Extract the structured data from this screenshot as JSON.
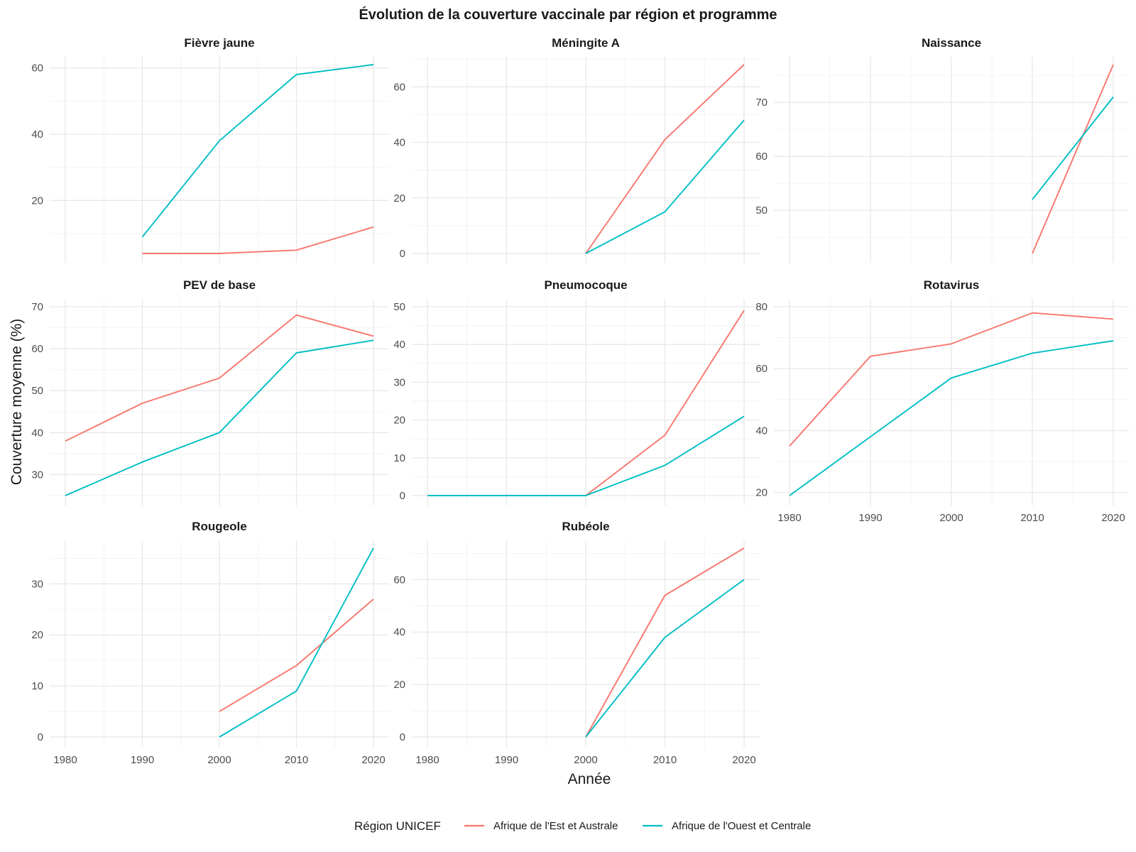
{
  "chart_data": {
    "type": "line",
    "title": "Évolution de la couverture vaccinale par région et programme",
    "xlabel": "Année",
    "ylabel": "Couverture moyenne (%)",
    "grid": true,
    "legend": {
      "title": "Région UNICEF",
      "placement": "bottom",
      "entries": [
        {
          "name": "Afrique de l'Est et Australe",
          "color": "#F8766D"
        },
        {
          "name": "Afrique de l'Ouest et Centrale",
          "color": "#00BFC4"
        }
      ]
    },
    "x_ticks": [
      1980,
      1990,
      2000,
      2010,
      2020
    ],
    "xlim": [
      1980,
      2020
    ],
    "panels": [
      {
        "title": "Fièvre jaune",
        "ylim": [
          4,
          61
        ],
        "y_ticks": [
          20,
          40,
          60
        ],
        "series": [
          {
            "name": "Afrique de l'Est et Australe",
            "x": [
              1990,
              2000,
              2010,
              2020
            ],
            "values": [
              4,
              4,
              5,
              12
            ]
          },
          {
            "name": "Afrique de l'Ouest et Centrale",
            "x": [
              1990,
              2000,
              2010,
              2020
            ],
            "values": [
              9,
              38,
              58,
              61
            ]
          }
        ]
      },
      {
        "title": "Méningite A",
        "ylim": [
          0,
          68
        ],
        "y_ticks": [
          0,
          20,
          40,
          60
        ],
        "series": [
          {
            "name": "Afrique de l'Est et Australe",
            "x": [
              2000,
              2010,
              2020
            ],
            "values": [
              0,
              41,
              68
            ]
          },
          {
            "name": "Afrique de l'Ouest et Centrale",
            "x": [
              2000,
              2010,
              2020
            ],
            "values": [
              0,
              15,
              48
            ]
          }
        ]
      },
      {
        "title": "Naissance",
        "ylim": [
          42,
          77
        ],
        "y_ticks": [
          50,
          60,
          70
        ],
        "series": [
          {
            "name": "Afrique de l'Est et Australe",
            "x": [
              2010,
              2020
            ],
            "values": [
              42,
              77
            ]
          },
          {
            "name": "Afrique de l'Ouest et Centrale",
            "x": [
              2010,
              2020
            ],
            "values": [
              52,
              71
            ]
          }
        ]
      },
      {
        "title": "PEV de base",
        "ylim": [
          25,
          70
        ],
        "y_ticks": [
          30,
          40,
          50,
          60,
          70
        ],
        "series": [
          {
            "name": "Afrique de l'Est et Australe",
            "x": [
              1980,
              1990,
              2000,
              2010,
              2020
            ],
            "values": [
              38,
              47,
              53,
              68,
              63
            ]
          },
          {
            "name": "Afrique de l'Ouest et Centrale",
            "x": [
              1980,
              1990,
              2000,
              2010,
              2020
            ],
            "values": [
              25,
              33,
              40,
              59,
              62
            ]
          }
        ]
      },
      {
        "title": "Pneumocoque",
        "ylim": [
          0,
          50
        ],
        "y_ticks": [
          0,
          10,
          20,
          30,
          40,
          50
        ],
        "series": [
          {
            "name": "Afrique de l'Est et Australe",
            "x": [
              1980,
              1990,
              2000,
              2010,
              2020
            ],
            "values": [
              0,
              0,
              0,
              16,
              49
            ]
          },
          {
            "name": "Afrique de l'Ouest et Centrale",
            "x": [
              1980,
              1990,
              2000,
              2010,
              2020
            ],
            "values": [
              0,
              0,
              0,
              8,
              21
            ]
          }
        ]
      },
      {
        "title": "Rotavirus",
        "ylim": [
          19,
          80
        ],
        "y_ticks": [
          20,
          40,
          60,
          80
        ],
        "series": [
          {
            "name": "Afrique de l'Est et Australe",
            "x": [
              1980,
              1990,
              2000,
              2010,
              2020
            ],
            "values": [
              35,
              64,
              68,
              78,
              76
            ]
          },
          {
            "name": "Afrique de l'Ouest et Centrale",
            "x": [
              1980,
              1990,
              2000,
              2010,
              2020
            ],
            "values": [
              19,
              38,
              57,
              65,
              69
            ]
          }
        ]
      },
      {
        "title": "Rougeole",
        "ylim": [
          0,
          37
        ],
        "y_ticks": [
          0,
          10,
          20,
          30
        ],
        "series": [
          {
            "name": "Afrique de l'Est et Australe",
            "x": [
              2000,
              2010,
              2020
            ],
            "values": [
              5,
              14,
              27
            ]
          },
          {
            "name": "Afrique de l'Ouest et Centrale",
            "x": [
              2000,
              2010,
              2020
            ],
            "values": [
              0,
              9,
              37
            ]
          }
        ]
      },
      {
        "title": "Rubéole",
        "ylim": [
          0,
          72
        ],
        "y_ticks": [
          0,
          20,
          40,
          60
        ],
        "series": [
          {
            "name": "Afrique de l'Est et Australe",
            "x": [
              2000,
              2010,
              2020
            ],
            "values": [
              0,
              54,
              72
            ]
          },
          {
            "name": "Afrique de l'Ouest et Centrale",
            "x": [
              2000,
              2010,
              2020
            ],
            "values": [
              0,
              38,
              60
            ]
          }
        ]
      }
    ]
  }
}
